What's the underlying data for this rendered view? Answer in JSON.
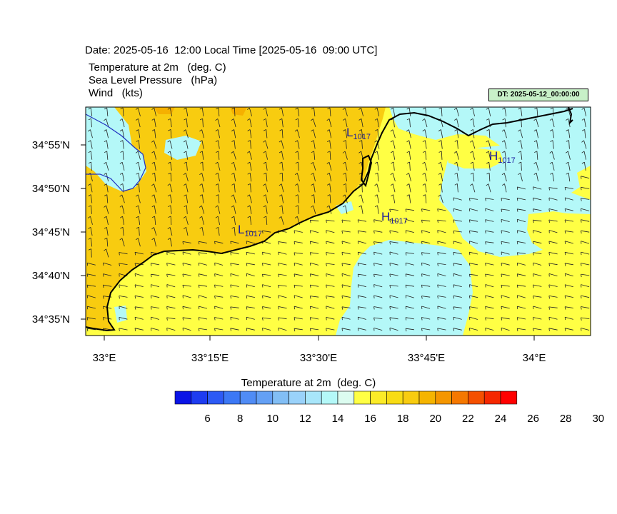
{
  "header": {
    "date_line": "Date: 2025-05-16  12:00 Local Time [2025-05-16  09:00 UTC]",
    "fields": [
      "Temperature at 2m   (deg. C)",
      "Sea Level Pressure   (hPa)",
      "Wind   (kts)"
    ],
    "dt_badge": "DT: 2025-05-12_00:00:00"
  },
  "map": {
    "lon_ticks": [
      "33°E",
      "33°15'E",
      "33°30'E",
      "33°45'E",
      "34°E"
    ],
    "lat_ticks": [
      "34°55'N",
      "34°50'N",
      "34°45'N",
      "34°40'N",
      "34°35'N"
    ],
    "pressure_labels": [
      {
        "letter": "L",
        "value": "1017"
      },
      {
        "letter": "H",
        "value": "1017"
      },
      {
        "letter": "L",
        "value": "1017"
      },
      {
        "letter": "H",
        "value": "1017"
      }
    ],
    "colors": {
      "warm_land": "#f8cc10",
      "warm_sea": "#ffff44",
      "cool": "#b4f8f8",
      "hot_patch": "#f5b000",
      "coastline": "#000000",
      "border": "#2030c0",
      "pressure_label": "#1a1aa0"
    }
  },
  "colorbar": {
    "title": "Temperature at 2m  (deg. C)",
    "colors": [
      "#0a14e6",
      "#1e3cf0",
      "#2d5af5",
      "#3c78f5",
      "#508cf5",
      "#64a0f5",
      "#82bef5",
      "#9ad2fa",
      "#a8e6fa",
      "#b4f8f8",
      "#dcfcf0",
      "#ffff44",
      "#fbeb28",
      "#f8dc14",
      "#f8cc10",
      "#f5b400",
      "#f59600",
      "#f57800",
      "#f55000",
      "#f52800",
      "#ff0000"
    ],
    "labels": [
      "6",
      "8",
      "10",
      "12",
      "14",
      "16",
      "18",
      "20",
      "22",
      "24",
      "26",
      "28",
      "30"
    ]
  }
}
